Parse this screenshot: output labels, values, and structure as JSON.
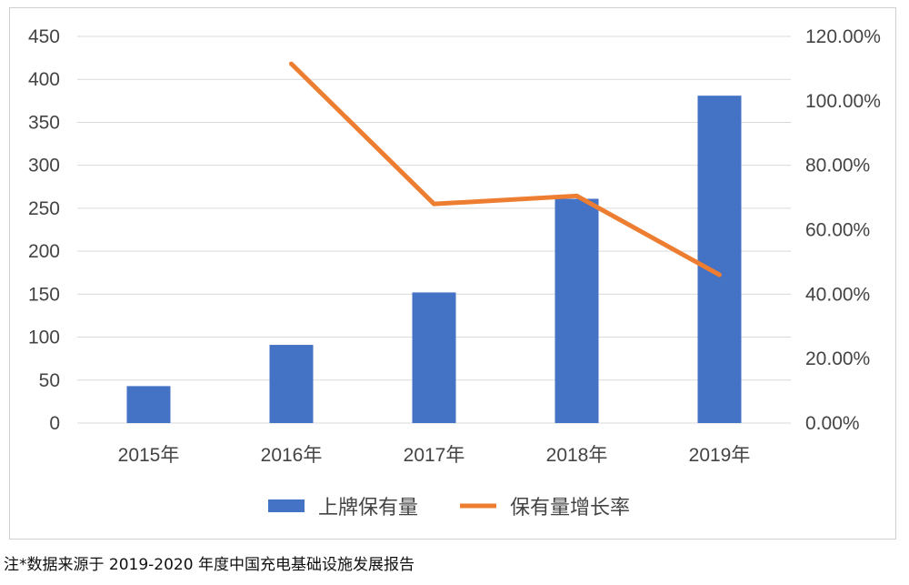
{
  "note": "注*数据来源于 2019-2020 年度中国充电基础设施发展报告",
  "colors": {
    "bar": "#4472C4",
    "line": "#ED7D31",
    "grid": "#d9d9d9",
    "text": "#444444"
  },
  "chart_data": {
    "type": "bar",
    "categories": [
      "2015年",
      "2016年",
      "2017年",
      "2018年",
      "2019年"
    ],
    "series": [
      {
        "name": "上牌保有量",
        "type": "bar",
        "axis": "left",
        "values": [
          43,
          91,
          152,
          261,
          381
        ]
      },
      {
        "name": "保有量增长率",
        "type": "line",
        "axis": "right",
        "values": [
          null,
          1.115,
          0.68,
          0.705,
          0.46
        ]
      }
    ],
    "y_left": {
      "min": 0,
      "max": 450,
      "step": 50,
      "ticks": [
        "0",
        "50",
        "100",
        "150",
        "200",
        "250",
        "300",
        "350",
        "400",
        "450"
      ]
    },
    "y_right": {
      "min": 0,
      "max": 1.2,
      "step": 0.2,
      "ticks": [
        "0.00%",
        "20.00%",
        "40.00%",
        "60.00%",
        "80.00%",
        "100.00%",
        "120.00%"
      ]
    },
    "grid": true,
    "legend": "bottom"
  }
}
